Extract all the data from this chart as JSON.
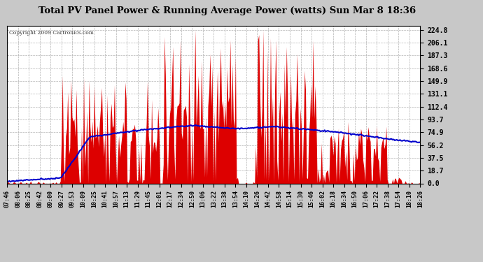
{
  "title": "Total PV Panel Power & Running Average Power (watts) Sun Mar 8 18:36",
  "copyright": "Copyright 2009 Cartronics.com",
  "yticks": [
    0.0,
    18.7,
    37.5,
    56.2,
    74.9,
    93.7,
    112.4,
    131.1,
    149.9,
    168.6,
    187.3,
    206.1,
    224.8
  ],
  "ymax": 230,
  "ymin": 0,
  "bg_color": "#c8c8c8",
  "plot_bg": "#ffffff",
  "bar_color": "#dd0000",
  "avg_color": "#0000cc",
  "title_fontsize": 10,
  "xtick_labels": [
    "07:46",
    "08:06",
    "08:25",
    "08:42",
    "09:00",
    "09:27",
    "09:53",
    "10:09",
    "10:25",
    "10:41",
    "10:57",
    "11:13",
    "11:29",
    "11:45",
    "12:01",
    "12:17",
    "12:34",
    "12:50",
    "13:06",
    "13:22",
    "13:38",
    "13:54",
    "14:10",
    "14:26",
    "14:42",
    "14:58",
    "15:14",
    "15:30",
    "15:46",
    "16:02",
    "16:18",
    "16:34",
    "16:50",
    "17:06",
    "17:22",
    "17:38",
    "17:54",
    "18:10",
    "18:26"
  ]
}
